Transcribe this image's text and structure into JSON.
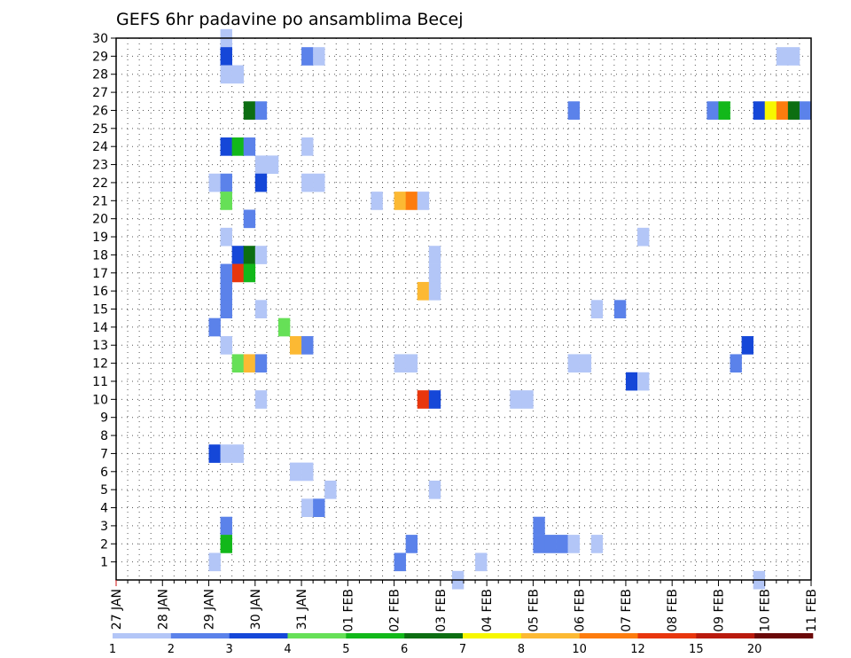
{
  "chart_data": {
    "type": "heatmap",
    "title": "GEFS 6hr padavine po ansamblima Becej",
    "y": [
      1,
      2,
      3,
      4,
      5,
      6,
      7,
      8,
      9,
      10,
      11,
      12,
      13,
      14,
      15,
      16,
      17,
      18,
      19,
      20,
      21,
      22,
      23,
      24,
      25,
      26,
      27,
      28,
      29,
      30
    ],
    "x_ticks": [
      "27 JAN",
      "28 JAN",
      "29 JAN",
      "30 JAN",
      "31 JAN",
      "01 FEB",
      "02 FEB",
      "03 FEB",
      "04 FEB",
      "05 FEB",
      "06 FEB",
      "07 FEB",
      "08 FEB",
      "09 FEB",
      "10 FEB",
      "11 FEB"
    ],
    "x_range": [
      "27 JAN 00",
      "11 FEB 00"
    ],
    "time_step_hours": 6,
    "grid": true,
    "legend_placement": "bottom",
    "legend": {
      "levels": [
        1,
        2,
        3,
        4,
        5,
        6,
        7,
        8,
        10,
        12,
        15,
        20
      ],
      "colors": [
        "#b3c6f7",
        "#5b82ea",
        "#1547d8",
        "#66e057",
        "#12b81a",
        "#0c6e12",
        "#f7f700",
        "#fcb933",
        "#fd7c0e",
        "#e8360d",
        "#b91a0d",
        "#6b0808"
      ]
    },
    "cells": [
      {
        "time": "29 JAN 06",
        "member": 30,
        "value": 1.5
      },
      {
        "time": "29 JAN 06",
        "member": 29,
        "value": 3.5
      },
      {
        "time": "31 JAN 00",
        "member": 29,
        "value": 2.5
      },
      {
        "time": "31 JAN 06",
        "member": 29,
        "value": 1.5
      },
      {
        "time": "10 FEB 06",
        "member": 29,
        "value": 1.5
      },
      {
        "time": "10 FEB 12",
        "member": 29,
        "value": 1.5
      },
      {
        "time": "29 JAN 06",
        "member": 28,
        "value": 1.5
      },
      {
        "time": "29 JAN 12",
        "member": 28,
        "value": 1.5
      },
      {
        "time": "29 JAN 18",
        "member": 26,
        "value": 6.5
      },
      {
        "time": "30 JAN 00",
        "member": 26,
        "value": 2.5
      },
      {
        "time": "05 FEB 18",
        "member": 26,
        "value": 2.5
      },
      {
        "time": "08 FEB 18",
        "member": 26,
        "value": 2.5
      },
      {
        "time": "09 FEB 00",
        "member": 26,
        "value": 5.5
      },
      {
        "time": "09 FEB 18",
        "member": 26,
        "value": 3.5
      },
      {
        "time": "10 FEB 00",
        "member": 26,
        "value": 7.5
      },
      {
        "time": "10 FEB 06",
        "member": 26,
        "value": 11
      },
      {
        "time": "10 FEB 12",
        "member": 26,
        "value": 6.5
      },
      {
        "time": "10 FEB 18",
        "member": 26,
        "value": 2.5
      },
      {
        "time": "29 JAN 06",
        "member": 24,
        "value": 3.5
      },
      {
        "time": "29 JAN 12",
        "member": 24,
        "value": 5.5
      },
      {
        "time": "29 JAN 18",
        "member": 24,
        "value": 2.5
      },
      {
        "time": "31 JAN 00",
        "member": 24,
        "value": 1.5
      },
      {
        "time": "30 JAN 00",
        "member": 23,
        "value": 1.5
      },
      {
        "time": "30 JAN 06",
        "member": 23,
        "value": 1.5
      },
      {
        "time": "29 JAN 00",
        "member": 22,
        "value": 1.5
      },
      {
        "time": "29 JAN 06",
        "member": 22,
        "value": 2.5
      },
      {
        "time": "30 JAN 00",
        "member": 22,
        "value": 3.5
      },
      {
        "time": "31 JAN 00",
        "member": 22,
        "value": 1.5
      },
      {
        "time": "31 JAN 06",
        "member": 22,
        "value": 1.5
      },
      {
        "time": "29 JAN 06",
        "member": 21,
        "value": 4.5
      },
      {
        "time": "01 FEB 12",
        "member": 21,
        "value": 1.5
      },
      {
        "time": "02 FEB 00",
        "member": 21,
        "value": 9
      },
      {
        "time": "02 FEB 06",
        "member": 21,
        "value": 11
      },
      {
        "time": "02 FEB 12",
        "member": 21,
        "value": 1.5
      },
      {
        "time": "29 JAN 18",
        "member": 20,
        "value": 2.5
      },
      {
        "time": "29 JAN 06",
        "member": 19,
        "value": 1.5
      },
      {
        "time": "07 FEB 06",
        "member": 19,
        "value": 1.5
      },
      {
        "time": "29 JAN 12",
        "member": 18,
        "value": 3.5
      },
      {
        "time": "29 JAN 18",
        "member": 18,
        "value": 6.5
      },
      {
        "time": "30 JAN 00",
        "member": 18,
        "value": 1.5
      },
      {
        "time": "29 JAN 12",
        "member": 17,
        "value": 13
      },
      {
        "time": "29 JAN 18",
        "member": 17,
        "value": 5.5
      },
      {
        "time": "02 FEB 18",
        "member": 18,
        "value": 1.5
      },
      {
        "time": "02 FEB 18",
        "member": 17,
        "value": 1.5
      },
      {
        "time": "02 FEB 12",
        "member": 16,
        "value": 9
      },
      {
        "time": "02 FEB 18",
        "member": 16,
        "value": 1.5
      },
      {
        "time": "29 JAN 06",
        "member": 17,
        "value": 2.5
      },
      {
        "time": "29 JAN 06",
        "member": 16,
        "value": 2.5
      },
      {
        "time": "29 JAN 06",
        "member": 15,
        "value": 2.5
      },
      {
        "time": "30 JAN 00",
        "member": 15,
        "value": 1.5
      },
      {
        "time": "06 FEB 06",
        "member": 15,
        "value": 1.5
      },
      {
        "time": "06 FEB 18",
        "member": 15,
        "value": 2.5
      },
      {
        "time": "29 JAN 00",
        "member": 14,
        "value": 2.5
      },
      {
        "time": "30 JAN 12",
        "member": 14,
        "value": 4.5
      },
      {
        "time": "29 JAN 06",
        "member": 13,
        "value": 1.5
      },
      {
        "time": "30 JAN 18",
        "member": 13,
        "value": 9
      },
      {
        "time": "31 JAN 00",
        "member": 13,
        "value": 2.5
      },
      {
        "time": "09 FEB 12",
        "member": 13,
        "value": 3.5
      },
      {
        "time": "29 JAN 12",
        "member": 12,
        "value": 4.5
      },
      {
        "time": "29 JAN 18",
        "member": 12,
        "value": 9
      },
      {
        "time": "30 JAN 00",
        "member": 12,
        "value": 2.5
      },
      {
        "time": "02 FEB 00",
        "member": 12,
        "value": 1.5
      },
      {
        "time": "02 FEB 06",
        "member": 12,
        "value": 1.5
      },
      {
        "time": "05 FEB 18",
        "member": 12,
        "value": 1.5
      },
      {
        "time": "06 FEB 00",
        "member": 12,
        "value": 1.5
      },
      {
        "time": "09 FEB 06",
        "member": 12,
        "value": 2.5
      },
      {
        "time": "07 FEB 00",
        "member": 11,
        "value": 3.5
      },
      {
        "time": "07 FEB 06",
        "member": 11,
        "value": 1.5
      },
      {
        "time": "30 JAN 00",
        "member": 10,
        "value": 1.5
      },
      {
        "time": "02 FEB 12",
        "member": 10,
        "value": 13
      },
      {
        "time": "02 FEB 18",
        "member": 10,
        "value": 3.5
      },
      {
        "time": "04 FEB 12",
        "member": 10,
        "value": 1.5
      },
      {
        "time": "04 FEB 18",
        "member": 10,
        "value": 1.5
      },
      {
        "time": "29 JAN 00",
        "member": 7,
        "value": 3.5
      },
      {
        "time": "29 JAN 06",
        "member": 7,
        "value": 1.5
      },
      {
        "time": "29 JAN 12",
        "member": 7,
        "value": 1.5
      },
      {
        "time": "30 JAN 18",
        "member": 6,
        "value": 1.5
      },
      {
        "time": "31 JAN 00",
        "member": 6,
        "value": 1.5
      },
      {
        "time": "31 JAN 12",
        "member": 5,
        "value": 1.5
      },
      {
        "time": "02 FEB 18",
        "member": 5,
        "value": 1.5
      },
      {
        "time": "31 JAN 00",
        "member": 4,
        "value": 1.5
      },
      {
        "time": "31 JAN 06",
        "member": 4,
        "value": 2.5
      },
      {
        "time": "29 JAN 06",
        "member": 3,
        "value": 2.5
      },
      {
        "time": "05 FEB 00",
        "member": 3,
        "value": 2.5
      },
      {
        "time": "29 JAN 06",
        "member": 2,
        "value": 5.5
      },
      {
        "time": "02 FEB 06",
        "member": 2,
        "value": 2.5
      },
      {
        "time": "05 FEB 00",
        "member": 2,
        "value": 2.5
      },
      {
        "time": "05 FEB 06",
        "member": 2,
        "value": 2.5
      },
      {
        "time": "05 FEB 12",
        "member": 2,
        "value": 2.5
      },
      {
        "time": "05 FEB 18",
        "member": 2,
        "value": 1.5
      },
      {
        "time": "06 FEB 06",
        "member": 2,
        "value": 1.5
      },
      {
        "time": "29 JAN 00",
        "member": 1,
        "value": 1.5
      },
      {
        "time": "02 FEB 00",
        "member": 1,
        "value": 2.5
      },
      {
        "time": "03 FEB 18",
        "member": 1,
        "value": 1.5
      },
      {
        "time": "03 FEB 06",
        "member": 0,
        "value": 1.5
      },
      {
        "time": "09 FEB 18",
        "member": 0,
        "value": 1.5
      }
    ]
  }
}
